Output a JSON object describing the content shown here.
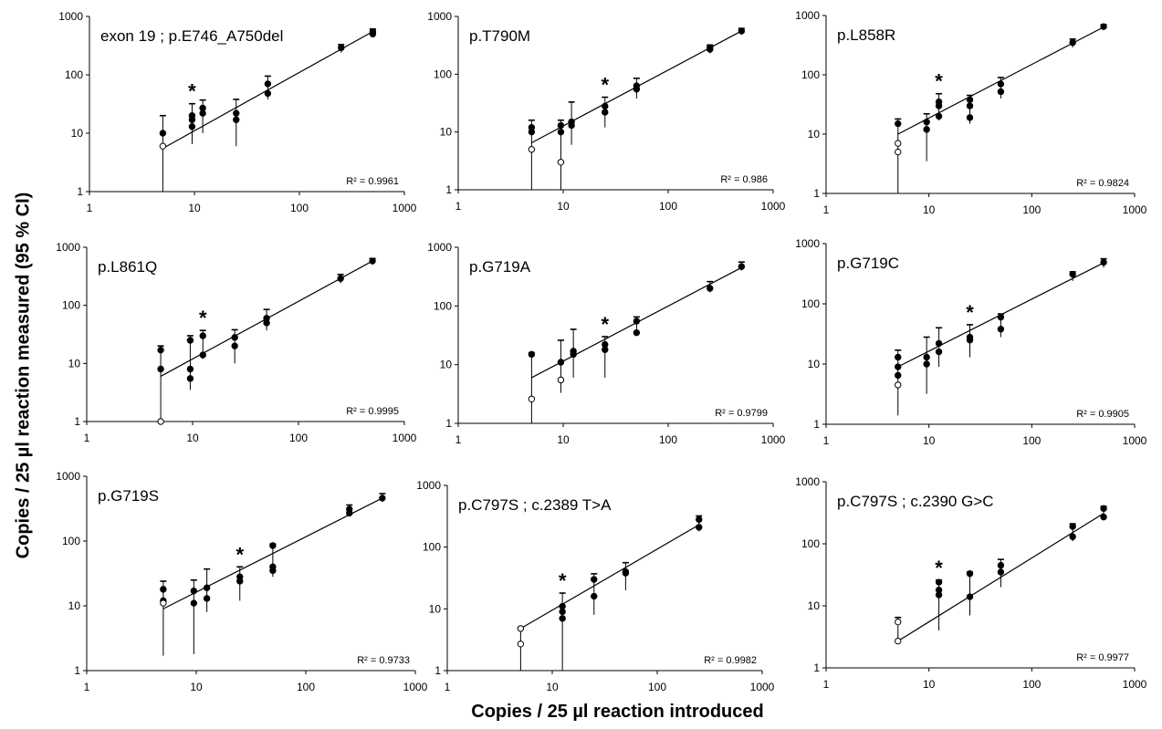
{
  "figure": {
    "ylabel": "Copies / 25 µl reaction measured (95 % CI)",
    "xlabel": "Copies / 25 µl reaction introduced"
  },
  "chart_data": [
    {
      "type": "scatter",
      "title": "exon 19 ; p.E746_A750del",
      "r2_label": "R² = 0.9961",
      "xlim": [
        1,
        1000
      ],
      "ylim": [
        1,
        1000
      ],
      "xscale": "log",
      "yscale": "log",
      "xticks": [
        "1",
        "10",
        "100",
        "1000"
      ],
      "yticks": [
        "1",
        "10",
        "100",
        "1000"
      ],
      "star_x": 9.5,
      "fit": [
        [
          5,
          5.5
        ],
        [
          500,
          550
        ]
      ],
      "points": [
        [
          5,
          10,
          1,
          20,
          1
        ],
        [
          5,
          6,
          1,
          1,
          0
        ],
        [
          9.5,
          17,
          6.5,
          32,
          1
        ],
        [
          9.5,
          20,
          1,
          1,
          1
        ],
        [
          9.5,
          13,
          1,
          1,
          1
        ],
        [
          12,
          22,
          10,
          37,
          1
        ],
        [
          12,
          27,
          1,
          1,
          1
        ],
        [
          25,
          22,
          6,
          38,
          1
        ],
        [
          25,
          17,
          1,
          1,
          1
        ],
        [
          50,
          70,
          38,
          95,
          1
        ],
        [
          50,
          48,
          1,
          1,
          1
        ],
        [
          250,
          290,
          240,
          330,
          1
        ],
        [
          500,
          550,
          450,
          610,
          1
        ],
        [
          500,
          500,
          1,
          1,
          1
        ]
      ]
    },
    {
      "type": "scatter",
      "title": "p.T790M",
      "r2_label": "R² = 0.986",
      "xlim": [
        1,
        1000
      ],
      "ylim": [
        1,
        1000
      ],
      "xscale": "log",
      "yscale": "log",
      "xticks": [
        "1",
        "10",
        "100",
        "1000"
      ],
      "yticks": [
        "1",
        "10",
        "100",
        "1000"
      ],
      "star_x": 25,
      "fit": [
        [
          5,
          6.5
        ],
        [
          500,
          560
        ]
      ],
      "points": [
        [
          5,
          12,
          1,
          16,
          1
        ],
        [
          5,
          10,
          1,
          1,
          1
        ],
        [
          5,
          5,
          1,
          1,
          0
        ],
        [
          9.5,
          10,
          1,
          16,
          1
        ],
        [
          9.5,
          13,
          1,
          1,
          1
        ],
        [
          9.5,
          3,
          1,
          1,
          0
        ],
        [
          12,
          15,
          6,
          33,
          1
        ],
        [
          12,
          13,
          1,
          1,
          1
        ],
        [
          25,
          28,
          12,
          40,
          1
        ],
        [
          25,
          22,
          1,
          1,
          1
        ],
        [
          50,
          63,
          38,
          85,
          1
        ],
        [
          50,
          55,
          1,
          1,
          1
        ],
        [
          250,
          270,
          230,
          320,
          1
        ],
        [
          250,
          290,
          1,
          1,
          1
        ],
        [
          500,
          560,
          480,
          620,
          1
        ]
      ]
    },
    {
      "type": "scatter",
      "title": "p.L858R",
      "r2_label": "R² = 0.9824",
      "xlim": [
        1,
        1000
      ],
      "ylim": [
        1,
        1000
      ],
      "xscale": "log",
      "yscale": "log",
      "xticks": [
        "1",
        "10",
        "100",
        "1000"
      ],
      "yticks": [
        "1",
        "10",
        "100",
        "1000"
      ],
      "star_x": 12.5,
      "fit": [
        [
          5,
          10
        ],
        [
          500,
          640
        ]
      ],
      "points": [
        [
          5,
          15,
          1,
          18,
          1
        ],
        [
          5,
          7,
          1,
          1,
          0
        ],
        [
          5,
          5,
          1,
          1,
          0
        ],
        [
          9.5,
          16,
          3.5,
          22,
          1
        ],
        [
          9.5,
          12,
          1,
          1,
          1
        ],
        [
          12.5,
          35,
          17,
          48,
          1
        ],
        [
          12.5,
          30,
          1,
          1,
          1
        ],
        [
          12.5,
          20,
          1,
          1,
          1
        ],
        [
          25,
          38,
          15,
          45,
          1
        ],
        [
          25,
          30,
          1,
          1,
          1
        ],
        [
          25,
          19,
          1,
          1,
          1
        ],
        [
          50,
          70,
          40,
          90,
          1
        ],
        [
          50,
          52,
          1,
          1,
          1
        ],
        [
          250,
          350,
          290,
          400,
          1
        ],
        [
          500,
          650,
          600,
          700,
          1
        ]
      ]
    },
    {
      "type": "scatter",
      "title": "p.L861Q",
      "r2_label": "R² = 0.9995",
      "xlim": [
        1,
        1000
      ],
      "ylim": [
        1,
        1000
      ],
      "xscale": "log",
      "yscale": "log",
      "xticks": [
        "1",
        "10",
        "100",
        "1000"
      ],
      "yticks": [
        "1",
        "10",
        "100",
        "1000"
      ],
      "star_x": 12.5,
      "fit": [
        [
          5,
          6
        ],
        [
          500,
          580
        ]
      ],
      "points": [
        [
          5,
          17,
          1,
          20,
          1
        ],
        [
          5,
          8,
          1,
          1,
          1
        ],
        [
          5,
          1,
          1,
          1,
          0
        ],
        [
          9.5,
          25,
          3.5,
          30,
          1
        ],
        [
          9.5,
          8,
          1,
          1,
          1
        ],
        [
          9.5,
          5.5,
          1,
          1,
          1
        ],
        [
          12.5,
          30,
          12,
          37,
          1
        ],
        [
          12.5,
          14,
          1,
          1,
          1
        ],
        [
          25,
          28,
          10,
          38,
          1
        ],
        [
          25,
          20,
          1,
          1,
          1
        ],
        [
          50,
          60,
          37,
          85,
          1
        ],
        [
          50,
          50,
          1,
          1,
          1
        ],
        [
          250,
          290,
          240,
          340,
          1
        ],
        [
          500,
          580,
          500,
          640,
          1
        ]
      ]
    },
    {
      "type": "scatter",
      "title": "p.G719A",
      "r2_label": "R² = 0.9799",
      "xlim": [
        1,
        1000
      ],
      "ylim": [
        1,
        1000
      ],
      "xscale": "log",
      "yscale": "log",
      "xticks": [
        "1",
        "10",
        "100",
        "1000"
      ],
      "yticks": [
        "1",
        "10",
        "100",
        "1000"
      ],
      "star_x": 25,
      "fit": [
        [
          5,
          6
        ],
        [
          500,
          450
        ]
      ],
      "points": [
        [
          5,
          15,
          1,
          16,
          1
        ],
        [
          5,
          2.6,
          1,
          1,
          0
        ],
        [
          9.5,
          11,
          3.3,
          26,
          1
        ],
        [
          9.5,
          5.5,
          1,
          1,
          0
        ],
        [
          12.5,
          17,
          6,
          40,
          1
        ],
        [
          12.5,
          15,
          1,
          1,
          1
        ],
        [
          25,
          22,
          6,
          30,
          1
        ],
        [
          25,
          18,
          1,
          1,
          1
        ],
        [
          50,
          55,
          35,
          65,
          1
        ],
        [
          50,
          35,
          1,
          1,
          1
        ],
        [
          250,
          200,
          170,
          260,
          1
        ],
        [
          500,
          470,
          400,
          560,
          1
        ]
      ]
    },
    {
      "type": "scatter",
      "title": "p.G719C",
      "r2_label": "R² = 0.9905",
      "xlim": [
        1,
        1000
      ],
      "ylim": [
        1,
        1000
      ],
      "xscale": "log",
      "yscale": "log",
      "xticks": [
        "1",
        "10",
        "100",
        "1000"
      ],
      "yticks": [
        "1",
        "10",
        "100",
        "1000"
      ],
      "star_x": 25,
      "fit": [
        [
          5,
          9
        ],
        [
          500,
          480
        ]
      ],
      "points": [
        [
          5,
          13,
          1.4,
          17,
          1
        ],
        [
          5,
          9,
          1,
          1,
          1
        ],
        [
          5,
          6.5,
          1,
          1,
          1
        ],
        [
          5,
          4.5,
          1,
          1,
          0
        ],
        [
          9.5,
          13,
          3.2,
          28,
          1
        ],
        [
          9.5,
          10,
          1,
          1,
          1
        ],
        [
          12.5,
          22,
          9,
          40,
          1
        ],
        [
          12.5,
          16,
          1,
          1,
          1
        ],
        [
          25,
          28,
          13,
          45,
          1
        ],
        [
          25,
          25,
          1,
          1,
          1
        ],
        [
          50,
          60,
          28,
          68,
          1
        ],
        [
          50,
          38,
          1,
          1,
          1
        ],
        [
          250,
          310,
          240,
          340,
          1
        ],
        [
          500,
          490,
          400,
          560,
          1
        ]
      ]
    },
    {
      "type": "scatter",
      "title": "p.G719S",
      "r2_label": "R² = 0.9733",
      "xlim": [
        1,
        1000
      ],
      "ylim": [
        1,
        1000
      ],
      "xscale": "log",
      "yscale": "log",
      "xticks": [
        "1",
        "10",
        "100",
        "1000"
      ],
      "yticks": [
        "1",
        "10",
        "100",
        "1000"
      ],
      "star_x": 25,
      "fit": [
        [
          5,
          9
        ],
        [
          500,
          460
        ]
      ],
      "points": [
        [
          5,
          18,
          1.7,
          24,
          1
        ],
        [
          5,
          12,
          1,
          1,
          1
        ],
        [
          5,
          11,
          1,
          1,
          0
        ],
        [
          9.5,
          17,
          1.8,
          25,
          1
        ],
        [
          9.5,
          11,
          1,
          1,
          1
        ],
        [
          12.5,
          19,
          8,
          37,
          1
        ],
        [
          12.5,
          13,
          1,
          1,
          1
        ],
        [
          25,
          28,
          12,
          40,
          1
        ],
        [
          25,
          24,
          1,
          1,
          1
        ],
        [
          50,
          85,
          28,
          90,
          1
        ],
        [
          50,
          40,
          1,
          1,
          1
        ],
        [
          50,
          35,
          1,
          1,
          1
        ],
        [
          250,
          310,
          240,
          360,
          1
        ],
        [
          250,
          270,
          1,
          1,
          1
        ],
        [
          500,
          460,
          400,
          540,
          1
        ]
      ]
    },
    {
      "type": "scatter",
      "title": "p.C797S ; c.2389 T>A",
      "r2_label": "R² = 0.9982",
      "xlim": [
        1,
        1000
      ],
      "ylim": [
        1,
        1000
      ],
      "xscale": "log",
      "yscale": "log",
      "xticks": [
        "1",
        "10",
        "100",
        "1000"
      ],
      "yticks": [
        "1",
        "10",
        "100",
        "1000"
      ],
      "star_x": 12.5,
      "fit": [
        [
          5,
          4.8
        ],
        [
          250,
          230
        ]
      ],
      "points": [
        [
          5,
          4.8,
          1,
          5,
          0
        ],
        [
          5,
          2.7,
          1,
          1,
          0
        ],
        [
          12.5,
          11,
          1,
          18,
          1
        ],
        [
          12.5,
          9,
          1,
          1,
          1
        ],
        [
          12.5,
          7,
          1,
          1,
          1
        ],
        [
          25,
          30,
          8,
          37,
          1
        ],
        [
          25,
          16,
          1,
          1,
          1
        ],
        [
          50,
          40,
          20,
          56,
          1
        ],
        [
          50,
          38,
          1,
          1,
          1
        ],
        [
          250,
          280,
          180,
          320,
          1
        ],
        [
          250,
          210,
          1,
          1,
          1
        ]
      ]
    },
    {
      "type": "scatter",
      "title": "p.C797S ; c.2390 G>C",
      "r2_label": "R² = 0.9977",
      "xlim": [
        1,
        1000
      ],
      "ylim": [
        1,
        1000
      ],
      "xscale": "log",
      "yscale": "log",
      "xticks": [
        "1",
        "10",
        "100",
        "1000"
      ],
      "yticks": [
        "1",
        "10",
        "100",
        "1000"
      ],
      "star_x": 12.5,
      "fit": [
        [
          5,
          2.7
        ],
        [
          500,
          310
        ]
      ],
      "points": [
        [
          5,
          5.5,
          2.6,
          6.5,
          0
        ],
        [
          5,
          2.7,
          1,
          1,
          0
        ],
        [
          12.5,
          24,
          4,
          26,
          1
        ],
        [
          12.5,
          18,
          1,
          1,
          1
        ],
        [
          12.5,
          15,
          1,
          1,
          1
        ],
        [
          25,
          33,
          7,
          35,
          1
        ],
        [
          25,
          14,
          1,
          1,
          1
        ],
        [
          50,
          45,
          20,
          56,
          1
        ],
        [
          50,
          35,
          1,
          1,
          1
        ],
        [
          250,
          190,
          110,
          210,
          1
        ],
        [
          250,
          130,
          1,
          1,
          1
        ],
        [
          500,
          370,
          250,
          400,
          1
        ],
        [
          500,
          270,
          1,
          1,
          1
        ]
      ]
    }
  ]
}
